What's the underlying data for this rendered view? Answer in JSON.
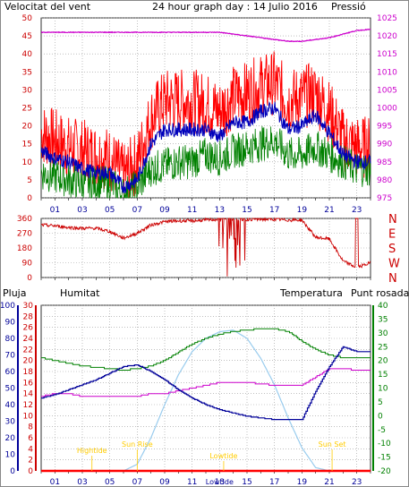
{
  "title": "24 hour graph day : 14 Julio 2016",
  "colors": {
    "wind_gust": "#ff0000",
    "wind_avg": "#0000bb",
    "wind_low": "#008000",
    "pressure": "#cc00cc",
    "direction": "#cc0000",
    "rain": "#ff0000",
    "humidity": "#000099",
    "temperature": "#008000",
    "dewpoint": "#cc00cc",
    "solar": "#99ccee",
    "event_text": "#ffcc00",
    "grid": "#999999"
  },
  "x_ticks": [
    "01",
    "03",
    "05",
    "07",
    "09",
    "11",
    "13",
    "15",
    "17",
    "19",
    "21",
    "23"
  ],
  "panel_wind": {
    "left_label": "Velocitat del vent",
    "right_label": "Pressió",
    "left_ticks": [
      "0",
      "5",
      "10",
      "15",
      "20",
      "25",
      "30",
      "35",
      "40",
      "45",
      "50"
    ],
    "right_ticks": [
      "975",
      "980",
      "985",
      "990",
      "995",
      "1000",
      "1005",
      "1010",
      "1015",
      "1020",
      "1025"
    ]
  },
  "panel_dir": {
    "left_ticks": [
      "0",
      "90",
      "180",
      "270",
      "360"
    ],
    "compass": [
      "N",
      "W",
      "S",
      "E",
      "N"
    ]
  },
  "panel_temp": {
    "labels": {
      "rain": "Pluja",
      "humidity": "Humitat",
      "temperature": "Temperatura",
      "dewpoint": "Punt rosada"
    },
    "humidity_ticks": [
      "0",
      "10",
      "20",
      "30",
      "40",
      "50",
      "60",
      "70",
      "80",
      "90",
      "100"
    ],
    "rain_ticks": [
      "0",
      "2",
      "4",
      "6",
      "8",
      "10",
      "12",
      "14",
      "16",
      "18",
      "20",
      "22",
      "24",
      "26",
      "28",
      "30"
    ],
    "temp_ticks": [
      "-20",
      "-15",
      "-10",
      "-5",
      "0",
      "5",
      "10",
      "15",
      "20",
      "25",
      "30",
      "35",
      "40"
    ],
    "events": [
      "Hightide",
      "Sun Rise",
      "Lowtide",
      "Sun Set"
    ],
    "bottom_event": "Lowtide"
  },
  "chart_data": [
    {
      "type": "line",
      "xlabel": "",
      "x_hours": [
        0,
        1,
        2,
        3,
        4,
        5,
        6,
        7,
        8,
        9,
        10,
        11,
        12,
        13,
        14,
        15,
        16,
        17,
        18,
        19,
        20,
        21,
        22,
        23,
        24
      ],
      "ylim": [
        0,
        50
      ],
      "series": [
        {
          "name": "Velocitat del vent",
          "values": [
            18,
            16,
            14,
            13,
            12,
            11,
            6,
            10,
            22,
            27,
            27,
            27,
            26,
            24,
            28,
            29,
            31,
            32,
            27,
            28,
            29,
            24,
            16,
            14,
            14
          ]
        },
        {
          "values": [
            13,
            11,
            10,
            8,
            7,
            7,
            3,
            5,
            15,
            19,
            19,
            19,
            19,
            17,
            21,
            21,
            24,
            25,
            19,
            20,
            23,
            18,
            12,
            10,
            10
          ]
        },
        {
          "values": [
            7,
            6,
            5,
            4,
            4,
            4,
            1,
            3,
            8,
            9,
            10,
            10,
            12,
            11,
            13,
            14,
            15,
            16,
            12,
            12,
            14,
            12,
            10,
            8,
            8
          ]
        },
        {
          "name": "Pressió",
          "values": [
            1021,
            1021,
            1021,
            1021,
            1021,
            1021,
            1021,
            1021,
            1021,
            1021,
            1021,
            1021,
            1021,
            1021,
            1020.5,
            1020,
            1019.5,
            1019,
            1018.5,
            1018.5,
            1019,
            1019.5,
            1020.5,
            1021.5,
            1021.8
          ]
        }
      ]
    },
    {
      "type": "line",
      "x_hours": [
        0,
        1,
        2,
        3,
        4,
        5,
        6,
        7,
        8,
        9,
        10,
        11,
        12,
        13,
        14,
        15,
        16,
        17,
        18,
        19,
        20,
        21,
        22,
        23,
        24
      ],
      "ylim": [
        0,
        360
      ],
      "series": [
        {
          "values": [
            320,
            315,
            305,
            300,
            300,
            280,
            240,
            270,
            320,
            340,
            345,
            345,
            350,
            355,
            355,
            355,
            355,
            355,
            350,
            350,
            245,
            235,
            100,
            60,
            90
          ]
        }
      ]
    },
    {
      "type": "line",
      "x_hours": [
        0,
        1,
        2,
        3,
        4,
        5,
        6,
        7,
        8,
        9,
        10,
        11,
        12,
        13,
        14,
        15,
        16,
        17,
        18,
        19,
        20,
        21,
        22,
        23,
        24
      ],
      "series": [
        {
          "name": "Humitat",
          "values": [
            44,
            46,
            49,
            52,
            55,
            59,
            63,
            64,
            60,
            55,
            49,
            44,
            40,
            37,
            35,
            33,
            32,
            31,
            31,
            31,
            48,
            63,
            75,
            72,
            72
          ]
        },
        {
          "name": "Temperatura",
          "values": [
            21,
            20,
            19,
            18,
            17.5,
            17,
            16.5,
            17,
            18,
            20,
            23,
            26,
            28,
            29.5,
            30.5,
            31,
            31.5,
            31.5,
            30.5,
            27,
            24,
            22,
            21,
            21,
            21
          ]
        },
        {
          "name": "Punt rosada",
          "values": [
            7,
            8,
            8,
            7,
            7,
            7,
            7,
            7,
            8,
            8,
            9,
            10,
            11,
            12,
            12,
            12,
            11.5,
            11,
            11,
            11,
            14,
            17,
            17,
            16.5,
            16.5
          ]
        },
        {
          "values": [
            0,
            0,
            0,
            0,
            0,
            0,
            0,
            4,
            20,
            40,
            58,
            72,
            80,
            84,
            85,
            80,
            68,
            52,
            32,
            14,
            2,
            0,
            0,
            0,
            0
          ]
        },
        {
          "name": "Pluja",
          "values": [
            0,
            0,
            0,
            0,
            0,
            0,
            0,
            0,
            0,
            0,
            0,
            0,
            0,
            0,
            0,
            0,
            0,
            0,
            0,
            0,
            0,
            0,
            0,
            0,
            0
          ]
        }
      ]
    }
  ]
}
